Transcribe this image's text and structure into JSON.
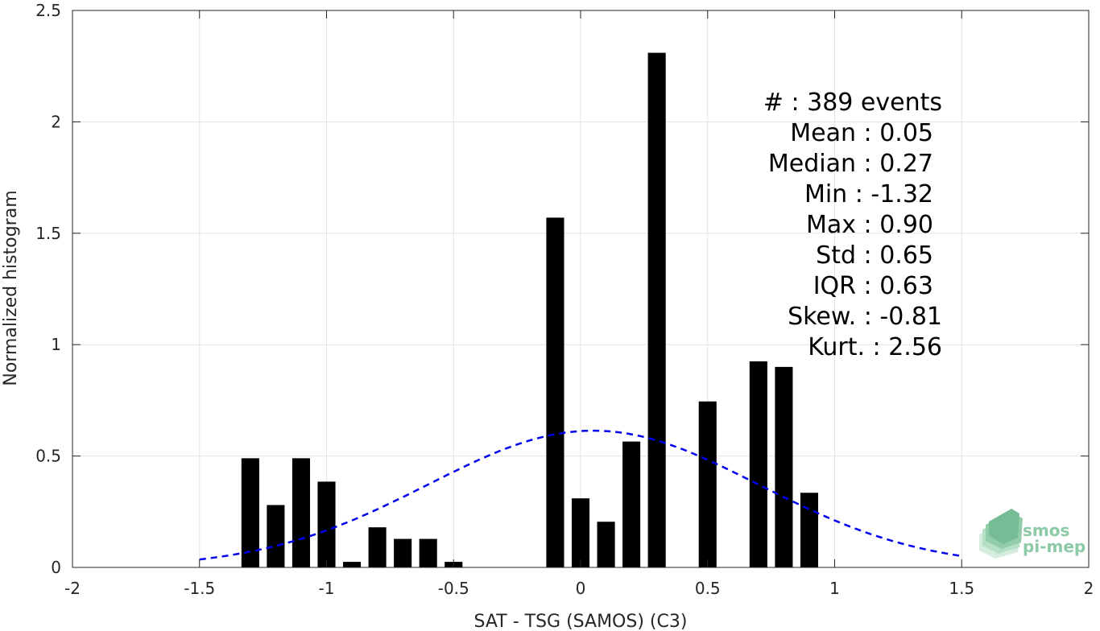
{
  "chart_data": {
    "type": "bar",
    "xlabel": "SAT - TSG (SAMOS) (C3)",
    "ylabel": "Normalized histogram",
    "xlim": [
      -2,
      2
    ],
    "ylim": [
      0,
      2.5
    ],
    "grid": true,
    "x_ticks": [
      "-2",
      "-1.5",
      "-1",
      "-0.5",
      "0",
      "0.5",
      "1",
      "1.5",
      "2"
    ],
    "y_ticks": [
      "0",
      "0.5",
      "1",
      "1.5",
      "2",
      "2.5"
    ],
    "bar_color": "#000000",
    "bar_width": 0.07,
    "bars": [
      {
        "x": -1.3,
        "value": 0.49
      },
      {
        "x": -1.2,
        "value": 0.28
      },
      {
        "x": -1.1,
        "value": 0.49
      },
      {
        "x": -1.0,
        "value": 0.385
      },
      {
        "x": -0.9,
        "value": 0.025
      },
      {
        "x": -0.8,
        "value": 0.18
      },
      {
        "x": -0.7,
        "value": 0.128
      },
      {
        "x": -0.6,
        "value": 0.128
      },
      {
        "x": -0.5,
        "value": 0.025
      },
      {
        "x": -0.1,
        "value": 1.57
      },
      {
        "x": 0.0,
        "value": 0.31
      },
      {
        "x": 0.1,
        "value": 0.205
      },
      {
        "x": 0.2,
        "value": 0.565
      },
      {
        "x": 0.3,
        "value": 2.31
      },
      {
        "x": 0.5,
        "value": 0.745
      },
      {
        "x": 0.7,
        "value": 0.925
      },
      {
        "x": 0.8,
        "value": 0.9
      },
      {
        "x": 0.9,
        "value": 0.335
      }
    ],
    "fit_curve": {
      "style": "dashed",
      "color": "#0000ee",
      "mean": 0.05,
      "std": 0.65,
      "x_range": [
        -1.5,
        1.5
      ]
    },
    "stats": [
      {
        "label": "#  : 389 events"
      },
      {
        "label": "Mean : 0.05"
      },
      {
        "label": "Median : 0.27"
      },
      {
        "label": "Min : -1.32"
      },
      {
        "label": "Max : 0.90"
      },
      {
        "label": "Std : 0.65"
      },
      {
        "label": "IQR : 0.63"
      },
      {
        "label": "Skew. : -0.81"
      },
      {
        "label": "Kurt. : 2.56"
      }
    ]
  },
  "logo": {
    "line1": "smos",
    "line2": "pi-mep",
    "icon": "layered-map-icon",
    "color": "#8cc9a6"
  }
}
